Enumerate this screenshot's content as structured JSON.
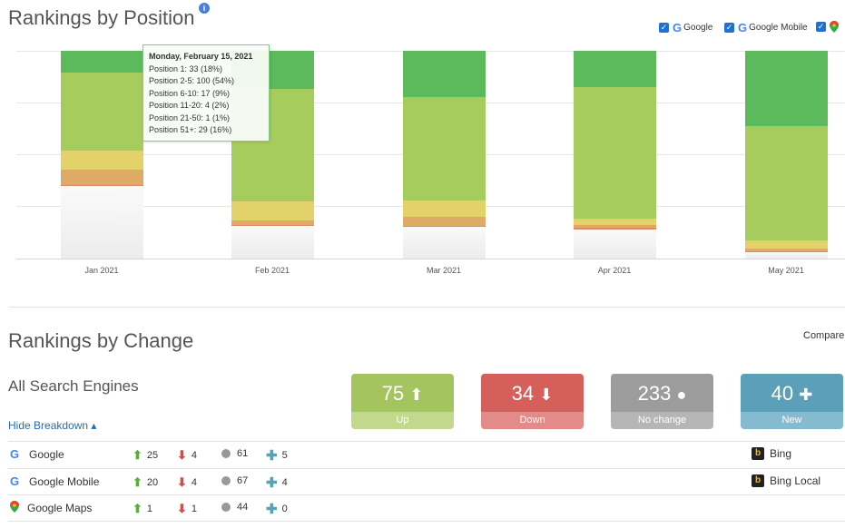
{
  "position_section": {
    "title": "Rankings by Position",
    "info_icon": "info-icon",
    "legend": [
      {
        "label": "Google",
        "checked": true
      },
      {
        "label": "Google Mobile",
        "checked": true
      },
      {
        "label": "",
        "checked": true,
        "icon": "maps-pin-icon"
      }
    ]
  },
  "chart_data": {
    "type": "bar",
    "stacked": true,
    "categories": [
      "Jan 2021",
      "Feb 2021",
      "Mar 2021",
      "Apr 2021",
      "May 2021"
    ],
    "series": [
      {
        "name": "Position 1",
        "color": "#5cba5c",
        "values": [
          0.104,
          0.182,
          0.222,
          0.173,
          0.361
        ]
      },
      {
        "name": "Position 2-5",
        "color": "#a7cc5e",
        "values": [
          0.377,
          0.541,
          0.5,
          0.636,
          0.552
        ]
      },
      {
        "name": "Position 6-10",
        "color": "#e3d26a",
        "values": [
          0.091,
          0.094,
          0.078,
          0.031,
          0.039
        ]
      },
      {
        "name": "Position 11-20",
        "color": "#dfa966",
        "values": [
          0.074,
          0.021,
          0.043,
          0.013,
          0.013
        ]
      },
      {
        "name": "Position 21-50",
        "color": "#e08a63",
        "values": [
          0.004,
          0.005,
          0.004,
          0.009,
          0.004
        ]
      },
      {
        "name": "Position 51+",
        "color": "#f2f2f2",
        "values": [
          0.35,
          0.157,
          0.153,
          0.138,
          0.031
        ]
      }
    ],
    "ylim": [
      0,
      1
    ],
    "grid": true,
    "tooltip": {
      "title": "Monday, February 15, 2021",
      "lines": [
        "Position 1: 33 (18%)",
        "Position 2-5: 100 (54%)",
        "Position 6-10: 17 (9%)",
        "Position 11-20: 4 (2%)",
        "Position 21-50: 1 (1%)",
        "Position 51+: 29 (16%)"
      ]
    }
  },
  "change_section": {
    "title": "Rankings by Change",
    "compare_label": "Compare",
    "engines_label": "All Search Engines",
    "hide_breakdown": "Hide Breakdown ▴",
    "cards": [
      {
        "value": "75",
        "icon": "arrow-up-icon",
        "glyph": "⬆",
        "label": "Up",
        "top": "#a4c45f",
        "bottom": "#c2d88c"
      },
      {
        "value": "34",
        "icon": "arrow-down-icon",
        "glyph": "⬇",
        "label": "Down",
        "top": "#d45f5b",
        "bottom": "#e28b88"
      },
      {
        "value": "233",
        "icon": "circle-icon",
        "glyph": "●",
        "label": "No change",
        "top": "#9c9c9c",
        "bottom": "#b6b6b6"
      },
      {
        "value": "40",
        "icon": "plus-icon",
        "glyph": "✚",
        "label": "New",
        "top": "#5b9fb8",
        "bottom": "#85bbcf"
      }
    ],
    "rows": [
      {
        "engine": "Google",
        "icon": "google-icon",
        "up": "25",
        "down": "4",
        "same": "61",
        "new": "5"
      },
      {
        "engine": "Google Mobile",
        "icon": "google-icon",
        "up": "20",
        "down": "4",
        "same": "67",
        "new": "4"
      },
      {
        "engine": "Google Maps",
        "icon": "maps-pin-icon",
        "up": "1",
        "down": "1",
        "same": "44",
        "new": "0"
      }
    ],
    "right_engines": [
      {
        "engine": "Bing",
        "icon": "bing-icon"
      },
      {
        "engine": "Bing Local",
        "icon": "bing-icon"
      }
    ]
  }
}
